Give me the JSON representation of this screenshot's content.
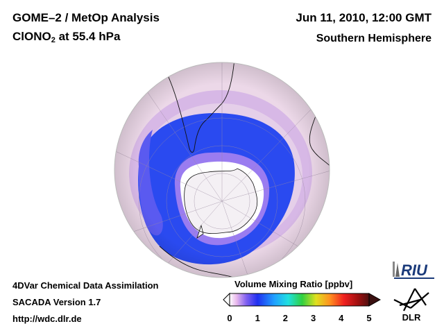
{
  "header": {
    "title_line1": "GOME–2 / MetOp Analysis",
    "title_line2_main": "ClONO",
    "title_line2_sub": "2",
    "title_line2_rest": " at 55.4 hPa",
    "date": "Jun 11, 2010, 12:00 GMT",
    "hemisphere": "Southern Hemisphere"
  },
  "footer": {
    "line1": "4DVar Chemical Data Assimilation",
    "line2": "SACADA Version 1.7",
    "line3": "http://wdc.dlr.de"
  },
  "colorbar": {
    "title": "Volume Mixing Ratio [ppbv]",
    "ticks": [
      "0",
      "1",
      "2",
      "3",
      "4",
      "5"
    ],
    "min": 0,
    "max": 5,
    "colors": [
      "#ffffff",
      "#e8b8ec",
      "#8060f0",
      "#2030f0",
      "#20a0ff",
      "#20e0e0",
      "#30d040",
      "#e0e020",
      "#ff9020",
      "#f02020",
      "#a01010",
      "#501010"
    ]
  },
  "map": {
    "projection": "orthographic-south-polar",
    "colors": {
      "ocean_background": "#ecd8e8",
      "low_band": "#2a4af0",
      "mid_ring": "#c8a4e8",
      "polar_core": "#ffffff",
      "coastline": "#111111"
    }
  },
  "logos": {
    "riu": "RIU",
    "dlr": "DLR"
  }
}
